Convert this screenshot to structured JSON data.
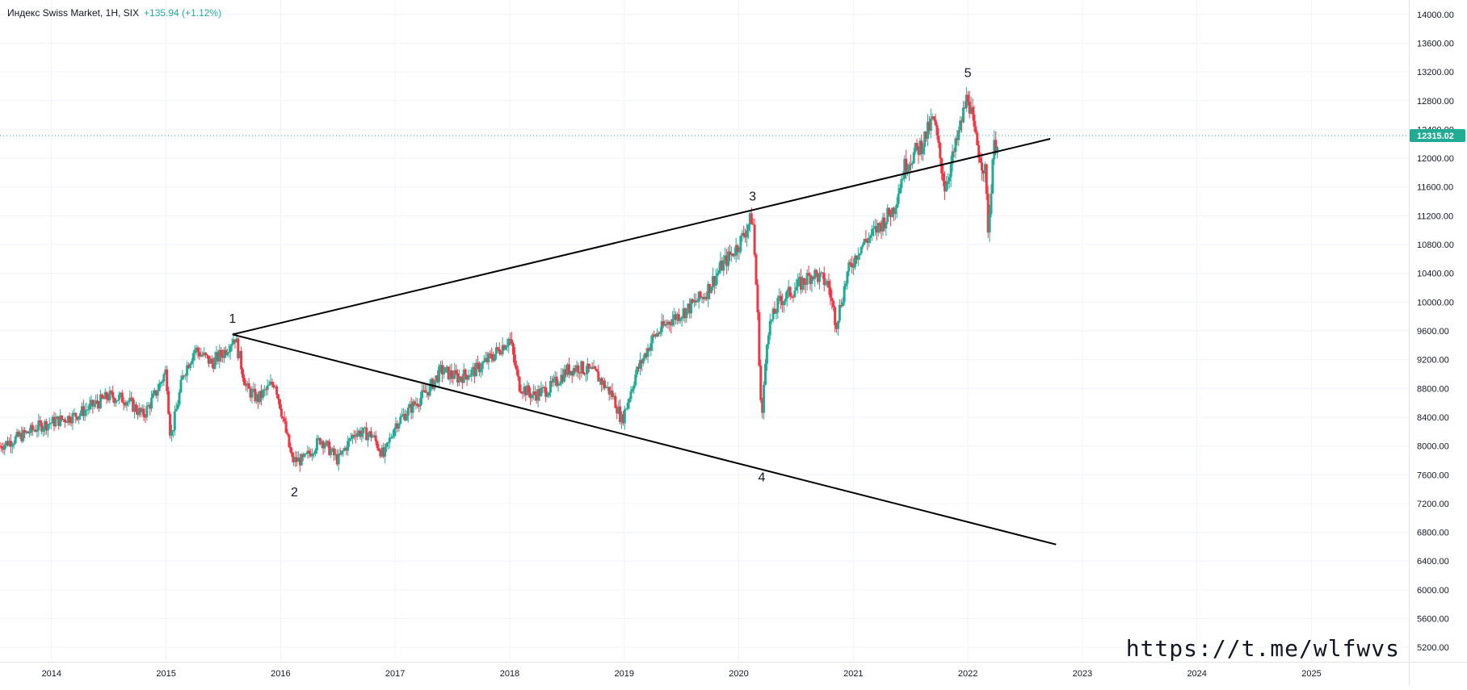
{
  "header": {
    "symbol_line": "Индекс Swiss Market, 1H, SIX",
    "change": "+135.94 (+1.12%)"
  },
  "watermark": "https://t.me/wlfwvs",
  "colors": {
    "up": "#22ab94",
    "down": "#f23645",
    "grid": "#f0f3fa",
    "axis_text": "#131722",
    "price_tag": "#22ab94",
    "trendline": "#000000"
  },
  "chart_data": {
    "type": "candlestick",
    "title": "",
    "xlabel": "",
    "ylabel": "",
    "ylim": [
      5000,
      14200
    ],
    "xlim": [
      2013.55,
      2025.85
    ],
    "x_ticks": [
      "2014",
      "2015",
      "2016",
      "2017",
      "2018",
      "2019",
      "2020",
      "2021",
      "2022",
      "2023",
      "2024",
      "2025"
    ],
    "y_ticks": [
      "14000.00",
      "13600.00",
      "13200.00",
      "12800.00",
      "12400.00",
      "12000.00",
      "11600.00",
      "11200.00",
      "10800.00",
      "10400.00",
      "10000.00",
      "9600.00",
      "9200.00",
      "8800.00",
      "8400.00",
      "8000.00",
      "7600.00",
      "7200.00",
      "6800.00",
      "6400.00",
      "6000.00",
      "5600.00",
      "5200.00"
    ],
    "last_price": 12315.02,
    "last_price_label": "12315.02",
    "grid": true,
    "price_path": [
      [
        2013.55,
        8000
      ],
      [
        2013.75,
        8150
      ],
      [
        2013.9,
        8280
      ],
      [
        2014.05,
        8350
      ],
      [
        2014.2,
        8420
      ],
      [
        2014.35,
        8550
      ],
      [
        2014.5,
        8690
      ],
      [
        2014.65,
        8650
      ],
      [
        2014.8,
        8420
      ],
      [
        2014.9,
        8700
      ],
      [
        2015.0,
        9050
      ],
      [
        2015.04,
        8100
      ],
      [
        2015.15,
        9000
      ],
      [
        2015.25,
        9350
      ],
      [
        2015.4,
        9150
      ],
      [
        2015.5,
        9300
      ],
      [
        2015.6,
        9530
      ],
      [
        2015.7,
        8800
      ],
      [
        2015.8,
        8650
      ],
      [
        2015.95,
        8900
      ],
      [
        2016.1,
        7800
      ],
      [
        2016.2,
        7800
      ],
      [
        2016.35,
        8100
      ],
      [
        2016.5,
        7800
      ],
      [
        2016.65,
        8200
      ],
      [
        2016.8,
        8150
      ],
      [
        2016.9,
        7850
      ],
      [
        2017.0,
        8300
      ],
      [
        2017.15,
        8550
      ],
      [
        2017.3,
        8800
      ],
      [
        2017.4,
        9050
      ],
      [
        2017.55,
        8950
      ],
      [
        2017.7,
        9050
      ],
      [
        2017.85,
        9250
      ],
      [
        2018.0,
        9500
      ],
      [
        2018.08,
        8850
      ],
      [
        2018.2,
        8700
      ],
      [
        2018.35,
        8800
      ],
      [
        2018.5,
        9050
      ],
      [
        2018.6,
        9100
      ],
      [
        2018.75,
        9000
      ],
      [
        2018.9,
        8700
      ],
      [
        2018.98,
        8350
      ],
      [
        2019.1,
        9000
      ],
      [
        2019.25,
        9500
      ],
      [
        2019.4,
        9750
      ],
      [
        2019.55,
        9900
      ],
      [
        2019.7,
        10100
      ],
      [
        2019.85,
        10500
      ],
      [
        2020.0,
        10800
      ],
      [
        2020.12,
        11200
      ],
      [
        2020.16,
        10000
      ],
      [
        2020.2,
        8300
      ],
      [
        2020.25,
        9600
      ],
      [
        2020.35,
        10000
      ],
      [
        2020.5,
        10200
      ],
      [
        2020.65,
        10400
      ],
      [
        2020.78,
        10250
      ],
      [
        2020.85,
        9700
      ],
      [
        2020.95,
        10400
      ],
      [
        2021.05,
        10750
      ],
      [
        2021.2,
        11000
      ],
      [
        2021.35,
        11300
      ],
      [
        2021.45,
        11900
      ],
      [
        2021.6,
        12200
      ],
      [
        2021.7,
        12550
      ],
      [
        2021.8,
        11600
      ],
      [
        2021.9,
        12200
      ],
      [
        2022.0,
        12900
      ],
      [
        2022.06,
        12300
      ],
      [
        2022.15,
        11800
      ],
      [
        2022.18,
        10950
      ],
      [
        2022.22,
        12100
      ],
      [
        2022.27,
        12315.02
      ]
    ],
    "trendlines": [
      {
        "from": [
          2015.58,
          9550
        ],
        "to": [
          2022.72,
          12270
        ]
      },
      {
        "from": [
          2015.58,
          9550
        ],
        "to": [
          2022.77,
          6630
        ]
      }
    ],
    "annotations": [
      {
        "text": "1",
        "x": 2015.58,
        "y": 9710
      },
      {
        "text": "2",
        "x": 2016.12,
        "y": 7300
      },
      {
        "text": "3",
        "x": 2020.12,
        "y": 11410
      },
      {
        "text": "4",
        "x": 2020.2,
        "y": 7510
      },
      {
        "text": "5",
        "x": 2022.0,
        "y": 13130
      }
    ]
  }
}
